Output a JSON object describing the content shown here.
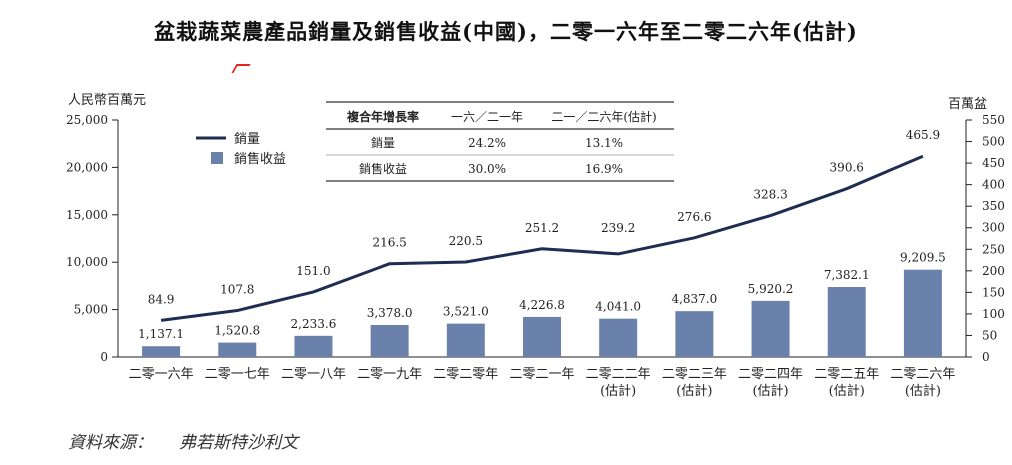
{
  "chart_data": {
    "type": "bar+line",
    "title": "盆栽蔬菜農產品銷量及銷售收益(中國)，二零一六年至二零二六年(估計)",
    "categories": [
      [
        "二零一六年"
      ],
      [
        "二零一七年"
      ],
      [
        "二零一八年"
      ],
      [
        "二零一九年"
      ],
      [
        "二零二零年"
      ],
      [
        "二零二一年"
      ],
      [
        "二零二二年",
        "(估計)"
      ],
      [
        "二零二三年",
        "(估計)"
      ],
      [
        "二零二四年",
        "(估計)"
      ],
      [
        "二零二五年",
        "(估計)"
      ],
      [
        "二零二六年",
        "(估計)"
      ]
    ],
    "series": [
      {
        "name": "銷售收益",
        "kind": "bar",
        "axis": "left",
        "values": [
          1137.1,
          1520.8,
          2233.6,
          3378.0,
          3521.0,
          4226.8,
          4041.0,
          4837.0,
          5920.2,
          7382.1,
          9209.5
        ],
        "labels": [
          "1,137.1",
          "1,520.8",
          "2,233.6",
          "3,378.0",
          "3,521.0",
          "4,226.8",
          "4,041.0",
          "4,837.0",
          "5,920.2",
          "7,382.1",
          "9,209.5"
        ]
      },
      {
        "name": "銷量",
        "kind": "line",
        "axis": "right",
        "values": [
          84.9,
          107.8,
          151.0,
          216.5,
          220.5,
          251.2,
          239.2,
          276.6,
          328.3,
          390.6,
          465.9
        ],
        "labels": [
          "84.9",
          "107.8",
          "151.0",
          "216.5",
          "220.5",
          "251.2",
          "239.2",
          "276.6",
          "328.3",
          "390.6",
          "465.9"
        ]
      }
    ],
    "y_left": {
      "label": "人民幣百萬元",
      "ylim": [
        0,
        25000
      ],
      "ticks": [
        0,
        5000,
        10000,
        15000,
        20000,
        25000
      ],
      "tick_labels": [
        "0",
        "5,000",
        "10,000",
        "15,000",
        "20,000",
        "25,000"
      ]
    },
    "y_right": {
      "label": "百萬盆",
      "ylim": [
        0,
        550
      ],
      "ticks": [
        0,
        50,
        100,
        150,
        200,
        250,
        300,
        350,
        400,
        450,
        500,
        550
      ],
      "tick_labels": [
        "0",
        "50",
        "100",
        "150",
        "200",
        "250",
        "300",
        "350",
        "400",
        "450",
        "500",
        "550"
      ]
    },
    "legend": {
      "position": "top-left",
      "items": [
        {
          "label": "銷量",
          "kind": "line"
        },
        {
          "label": "銷售收益",
          "kind": "bar"
        }
      ]
    },
    "cagr_table": {
      "headers": [
        "複合年增長率",
        "一六／二一年",
        "二一／二六年(估計)"
      ],
      "rows": [
        [
          "銷量",
          "24.2%",
          "13.1%"
        ],
        [
          "銷售收益",
          "30.0%",
          "16.9%"
        ]
      ]
    },
    "grid": false
  },
  "source": {
    "label": "資料來源：",
    "value": "弗若斯特沙利文"
  },
  "colors": {
    "bar": "#6a82ab",
    "line": "#1f2d52",
    "axis": "#222222",
    "text": "#222222"
  }
}
